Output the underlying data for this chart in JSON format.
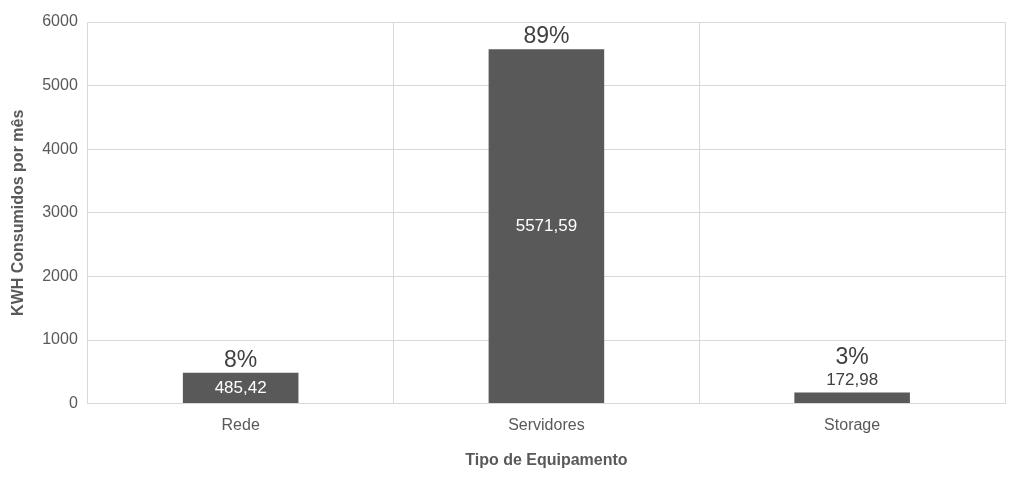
{
  "chart_data": {
    "type": "bar",
    "xlabel": "Tipo de Equipamento",
    "ylabel": "KWH Consumidos por mês",
    "categories": [
      "Rede",
      "Servidores",
      "Storage"
    ],
    "values": [
      485.42,
      5571.59,
      172.98
    ],
    "value_labels": [
      "485,42",
      "5571,59",
      "172,98"
    ],
    "color": "#595959",
    "ylim": [
      0,
      6000
    ],
    "yticks": [
      0,
      1000,
      2000,
      3000,
      4000,
      5000,
      6000
    ],
    "grid": true,
    "annotations": [
      {
        "text": "8%",
        "x": "Rede",
        "y": 485.42
      },
      {
        "text": "89%",
        "x": "Servidores",
        "y": 5571.59
      },
      {
        "text": "3%",
        "x": "Storage",
        "y": 172.98
      }
    ]
  }
}
